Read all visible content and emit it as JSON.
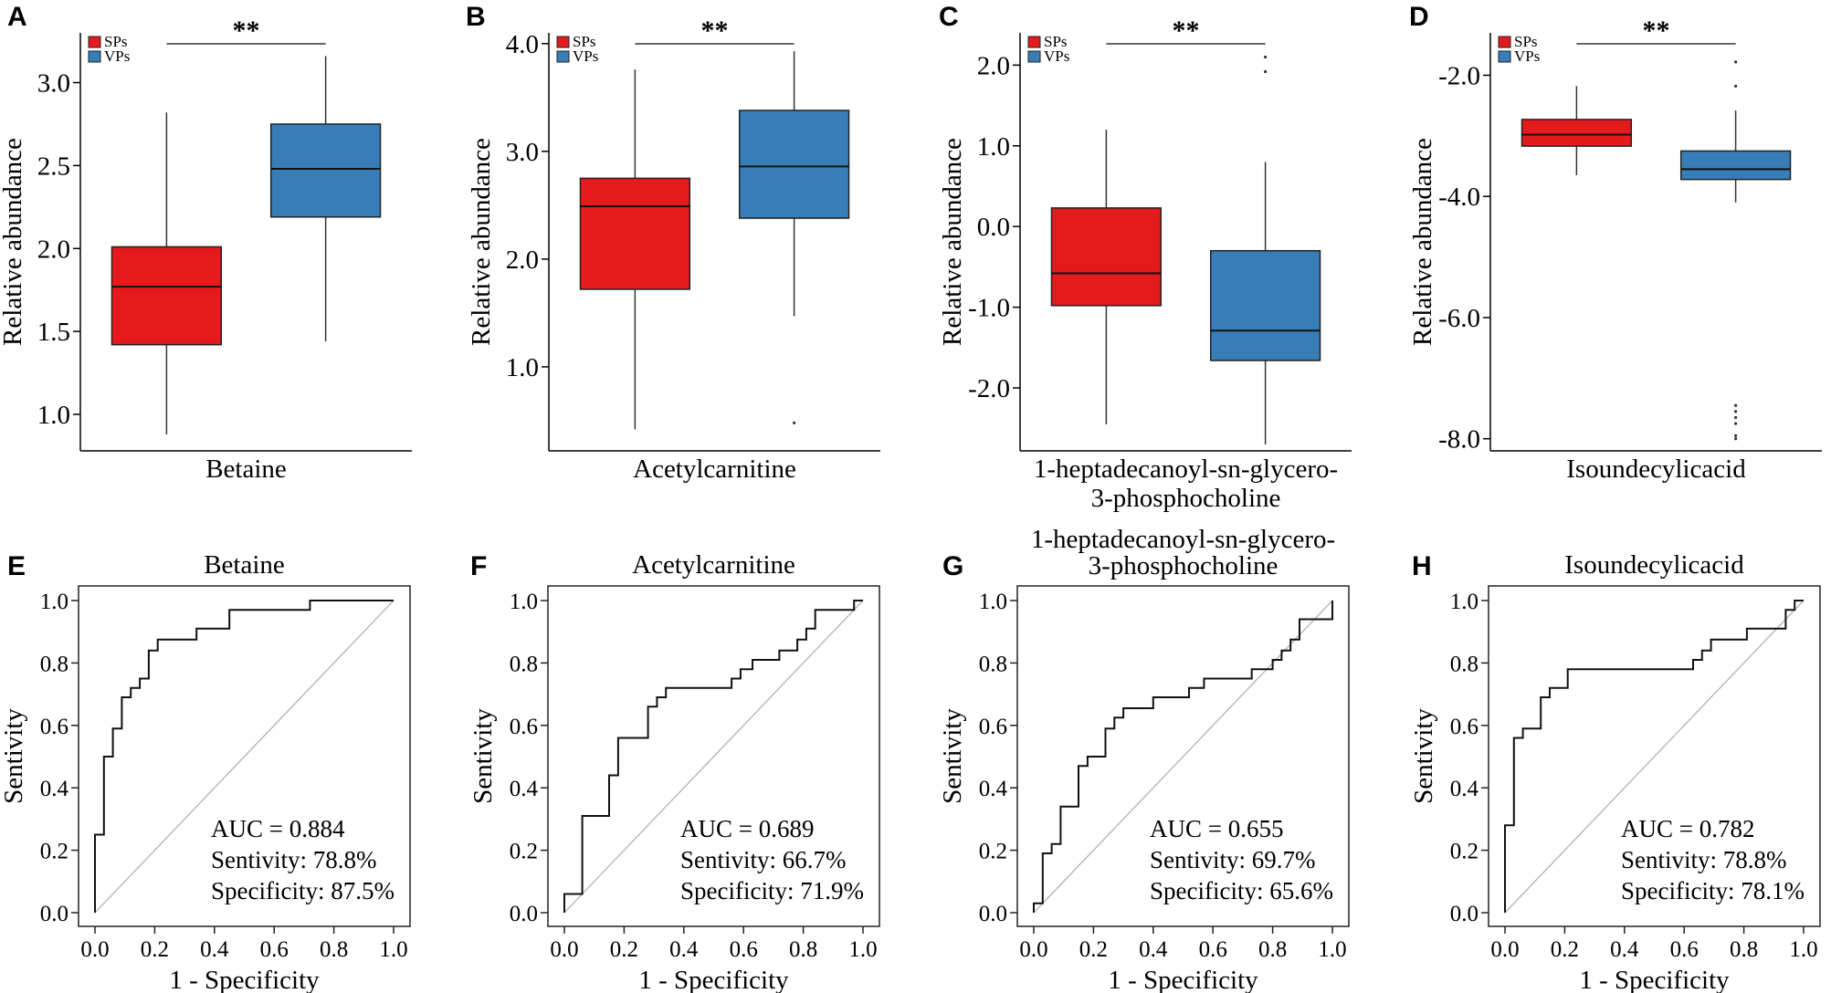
{
  "figure": {
    "box_panels": [
      {
        "letter": "A",
        "metabolite": "Betaine",
        "ylabel": "Relative abundance",
        "significance": "**",
        "ylim": [
          0.78,
          3.3
        ],
        "yticks": [
          1.0,
          1.5,
          2.0,
          2.5,
          3.0
        ],
        "ytick_labels": [
          "1.0",
          "1.5",
          "2.0",
          "2.5",
          "3.0"
        ],
        "legend": [
          "SPs",
          "VPs"
        ],
        "groups": [
          {
            "name": "SPs",
            "color": "#e41a1c",
            "min": 0.88,
            "q1": 1.42,
            "median": 1.77,
            "q3": 2.01,
            "max": 2.82,
            "outliers": []
          },
          {
            "name": "VPs",
            "color": "#377eb8",
            "min": 1.44,
            "q1": 2.19,
            "median": 2.48,
            "q3": 2.75,
            "max": 3.16,
            "outliers": []
          }
        ]
      },
      {
        "letter": "B",
        "metabolite": "Acetylcarnitine",
        "ylabel": "Relative abundance",
        "significance": "**",
        "ylim": [
          0.22,
          4.1
        ],
        "yticks": [
          1.0,
          2.0,
          3.0,
          4.0
        ],
        "ytick_labels": [
          "1.0",
          "2.0",
          "3.0",
          "4.0"
        ],
        "legend": [
          "SPs",
          "VPs"
        ],
        "groups": [
          {
            "name": "SPs",
            "color": "#e41a1c",
            "min": 0.42,
            "q1": 1.72,
            "median": 2.49,
            "q3": 2.75,
            "max": 3.76,
            "outliers": []
          },
          {
            "name": "VPs",
            "color": "#377eb8",
            "min": 1.47,
            "q1": 2.38,
            "median": 2.86,
            "q3": 3.38,
            "max": 3.93,
            "outliers": [
              0.48
            ]
          }
        ]
      },
      {
        "letter": "C",
        "metabolite": "1-heptadecanoyl-sn-glycero-3-phosphocholine",
        "metabolite_lines": [
          "1-heptadecanoyl-sn-glycero-",
          "3-phosphocholine"
        ],
        "ylabel": "Relative abundance",
        "significance": "**",
        "ylim": [
          -2.78,
          2.4
        ],
        "yticks": [
          -2.0,
          -1.0,
          0.0,
          1.0,
          2.0
        ],
        "ytick_labels": [
          "-2.0",
          "-1.0",
          "0.0",
          "1.0",
          "2.0"
        ],
        "legend": [
          "SPs",
          "VPs"
        ],
        "groups": [
          {
            "name": "SPs",
            "color": "#e41a1c",
            "min": -2.45,
            "q1": -0.98,
            "median": -0.58,
            "q3": 0.23,
            "max": 1.2,
            "outliers": []
          },
          {
            "name": "VPs",
            "color": "#377eb8",
            "min": -2.7,
            "q1": -1.66,
            "median": -1.29,
            "q3": -0.3,
            "max": 0.8,
            "outliers": [
              1.92,
              2.1
            ]
          }
        ]
      },
      {
        "letter": "D",
        "metabolite": "Isoundecylicacid",
        "ylabel": "Relative abundance",
        "significance": "**",
        "ylim": [
          -8.2,
          -1.3
        ],
        "yticks": [
          -8.0,
          -6.0,
          -4.0,
          -2.0
        ],
        "ytick_labels": [
          "-8.0",
          "-6.0",
          "-4.0",
          "-2.0"
        ],
        "legend": [
          "SPs",
          "VPs"
        ],
        "groups": [
          {
            "name": "SPs",
            "color": "#e41a1c",
            "min": -3.65,
            "q1": -3.17,
            "median": -2.98,
            "q3": -2.73,
            "max": -2.18,
            "outliers": []
          },
          {
            "name": "VPs",
            "color": "#377eb8",
            "min": -4.1,
            "q1": -3.72,
            "median": -3.55,
            "q3": -3.25,
            "max": -2.58,
            "outliers": [
              -1.78,
              -2.18,
              -7.45,
              -7.55,
              -7.65,
              -7.75,
              -7.95,
              -8.0
            ]
          }
        ]
      }
    ],
    "roc_panels": [
      {
        "letter": "E",
        "title": "Betaine",
        "title_lines": [
          "Betaine"
        ],
        "xlabel": "1 - Specificity",
        "ylabel": "Sentivity",
        "xticks": [
          "0.0",
          "0.2",
          "0.4",
          "0.6",
          "0.8",
          "1.0"
        ],
        "yticks": [
          "0.0",
          "0.2",
          "0.4",
          "0.6",
          "0.8",
          "1.0"
        ],
        "auc_text": "AUC = 0.884",
        "sens_text": "Sentivity: 78.8%",
        "spec_text": "Specificity: 87.5%",
        "curve": [
          [
            0,
            0
          ],
          [
            0,
            0.06
          ],
          [
            0,
            0.25
          ],
          [
            0.03,
            0.25
          ],
          [
            0.03,
            0.5
          ],
          [
            0.06,
            0.5
          ],
          [
            0.06,
            0.59
          ],
          [
            0.09,
            0.59
          ],
          [
            0.09,
            0.69
          ],
          [
            0.12,
            0.69
          ],
          [
            0.12,
            0.72
          ],
          [
            0.15,
            0.72
          ],
          [
            0.15,
            0.75
          ],
          [
            0.18,
            0.75
          ],
          [
            0.18,
            0.84
          ],
          [
            0.21,
            0.84
          ],
          [
            0.21,
            0.875
          ],
          [
            0.34,
            0.875
          ],
          [
            0.34,
            0.91
          ],
          [
            0.45,
            0.91
          ],
          [
            0.45,
            0.97
          ],
          [
            0.72,
            0.97
          ],
          [
            0.72,
            1.0
          ],
          [
            1.0,
            1.0
          ]
        ]
      },
      {
        "letter": "F",
        "title": "Acetylcarnitine",
        "title_lines": [
          "Acetylcarnitine"
        ],
        "xlabel": "1 - Specificity",
        "ylabel": "Sentivity",
        "xticks": [
          "0.0",
          "0.2",
          "0.4",
          "0.6",
          "0.8",
          "1.0"
        ],
        "yticks": [
          "0.0",
          "0.2",
          "0.4",
          "0.6",
          "0.8",
          "1.0"
        ],
        "auc_text": "AUC = 0.689",
        "sens_text": "Sentivity: 66.7%",
        "spec_text": "Specificity: 71.9%",
        "curve": [
          [
            0,
            0
          ],
          [
            0,
            0.06
          ],
          [
            0.06,
            0.06
          ],
          [
            0.06,
            0.31
          ],
          [
            0.15,
            0.31
          ],
          [
            0.15,
            0.44
          ],
          [
            0.18,
            0.44
          ],
          [
            0.18,
            0.56
          ],
          [
            0.28,
            0.56
          ],
          [
            0.28,
            0.66
          ],
          [
            0.31,
            0.66
          ],
          [
            0.31,
            0.69
          ],
          [
            0.34,
            0.69
          ],
          [
            0.34,
            0.72
          ],
          [
            0.56,
            0.72
          ],
          [
            0.56,
            0.75
          ],
          [
            0.59,
            0.75
          ],
          [
            0.59,
            0.78
          ],
          [
            0.63,
            0.78
          ],
          [
            0.63,
            0.81
          ],
          [
            0.72,
            0.81
          ],
          [
            0.72,
            0.84
          ],
          [
            0.78,
            0.84
          ],
          [
            0.78,
            0.875
          ],
          [
            0.81,
            0.875
          ],
          [
            0.81,
            0.91
          ],
          [
            0.84,
            0.91
          ],
          [
            0.84,
            0.97
          ],
          [
            0.97,
            0.97
          ],
          [
            0.97,
            1.0
          ],
          [
            1.0,
            1.0
          ]
        ]
      },
      {
        "letter": "G",
        "title": "1-heptadecanoyl-sn-glycero-3-phosphocholine",
        "title_lines": [
          "1-heptadecanoyl-sn-glycero-",
          "3-phosphocholine"
        ],
        "xlabel": "1 - Specificity",
        "ylabel": "Sentivity",
        "xticks": [
          "0.0",
          "0.2",
          "0.4",
          "0.6",
          "0.8",
          "1.0"
        ],
        "yticks": [
          "0.0",
          "0.2",
          "0.4",
          "0.6",
          "0.8",
          "1.0"
        ],
        "auc_text": "AUC = 0.655",
        "sens_text": "Sentivity: 69.7%",
        "spec_text": "Specificity: 65.6%",
        "curve": [
          [
            0,
            0
          ],
          [
            0,
            0.03
          ],
          [
            0.03,
            0.03
          ],
          [
            0.03,
            0.19
          ],
          [
            0.06,
            0.19
          ],
          [
            0.06,
            0.22
          ],
          [
            0.09,
            0.22
          ],
          [
            0.09,
            0.34
          ],
          [
            0.15,
            0.34
          ],
          [
            0.15,
            0.47
          ],
          [
            0.18,
            0.47
          ],
          [
            0.18,
            0.5
          ],
          [
            0.24,
            0.5
          ],
          [
            0.24,
            0.59
          ],
          [
            0.27,
            0.59
          ],
          [
            0.27,
            0.625
          ],
          [
            0.3,
            0.625
          ],
          [
            0.3,
            0.655
          ],
          [
            0.4,
            0.655
          ],
          [
            0.4,
            0.69
          ],
          [
            0.52,
            0.69
          ],
          [
            0.52,
            0.72
          ],
          [
            0.57,
            0.72
          ],
          [
            0.57,
            0.75
          ],
          [
            0.73,
            0.75
          ],
          [
            0.73,
            0.78
          ],
          [
            0.8,
            0.78
          ],
          [
            0.8,
            0.81
          ],
          [
            0.83,
            0.81
          ],
          [
            0.83,
            0.84
          ],
          [
            0.86,
            0.84
          ],
          [
            0.86,
            0.875
          ],
          [
            0.89,
            0.875
          ],
          [
            0.89,
            0.94
          ],
          [
            1.0,
            0.94
          ],
          [
            1.0,
            1.0
          ]
        ]
      },
      {
        "letter": "H",
        "title": "Isoundecylicacid",
        "title_lines": [
          "Isoundecylicacid"
        ],
        "xlabel": "1 - Specificity",
        "ylabel": "Sentivity",
        "xticks": [
          "0.0",
          "0.2",
          "0.4",
          "0.6",
          "0.8",
          "1.0"
        ],
        "yticks": [
          "0.0",
          "0.2",
          "0.4",
          "0.6",
          "0.8",
          "1.0"
        ],
        "auc_text": "AUC = 0.782",
        "sens_text": "Sentivity: 78.8%",
        "spec_text": "Specificity: 78.1%",
        "curve": [
          [
            0,
            0
          ],
          [
            0,
            0.28
          ],
          [
            0.03,
            0.28
          ],
          [
            0.03,
            0.56
          ],
          [
            0.06,
            0.56
          ],
          [
            0.06,
            0.59
          ],
          [
            0.12,
            0.59
          ],
          [
            0.12,
            0.69
          ],
          [
            0.15,
            0.69
          ],
          [
            0.15,
            0.72
          ],
          [
            0.21,
            0.72
          ],
          [
            0.21,
            0.78
          ],
          [
            0.63,
            0.78
          ],
          [
            0.63,
            0.81
          ],
          [
            0.66,
            0.81
          ],
          [
            0.66,
            0.84
          ],
          [
            0.69,
            0.84
          ],
          [
            0.69,
            0.875
          ],
          [
            0.81,
            0.875
          ],
          [
            0.81,
            0.91
          ],
          [
            0.94,
            0.91
          ],
          [
            0.94,
            0.97
          ],
          [
            0.97,
            0.97
          ],
          [
            0.97,
            1.0
          ],
          [
            1.0,
            1.0
          ]
        ]
      }
    ]
  },
  "chart_data": [
    {
      "type": "box",
      "panel": "A",
      "title": "Betaine",
      "xlabel": "Betaine",
      "ylabel": "Relative abundance",
      "categories": [
        "SPs",
        "VPs"
      ],
      "series": [
        {
          "name": "SPs",
          "min": 0.88,
          "q1": 1.42,
          "median": 1.77,
          "q3": 2.01,
          "max": 2.82
        },
        {
          "name": "VPs",
          "min": 1.44,
          "q1": 2.19,
          "median": 2.48,
          "q3": 2.75,
          "max": 3.16
        }
      ],
      "ylim": [
        0.78,
        3.3
      ],
      "annotation": "**"
    },
    {
      "type": "box",
      "panel": "B",
      "title": "Acetylcarnitine",
      "xlabel": "Acetylcarnitine",
      "ylabel": "Relative abundance",
      "categories": [
        "SPs",
        "VPs"
      ],
      "series": [
        {
          "name": "SPs",
          "min": 0.42,
          "q1": 1.72,
          "median": 2.49,
          "q3": 2.75,
          "max": 3.76
        },
        {
          "name": "VPs",
          "min": 1.47,
          "q1": 2.38,
          "median": 2.86,
          "q3": 3.38,
          "max": 3.93,
          "outliers": [
            0.48
          ]
        }
      ],
      "ylim": [
        0.22,
        4.1
      ],
      "annotation": "**"
    },
    {
      "type": "box",
      "panel": "C",
      "title": "1-heptadecanoyl-sn-glycero-3-phosphocholine",
      "xlabel": "1-heptadecanoyl-sn-glycero-3-phosphocholine",
      "ylabel": "Relative abundance",
      "categories": [
        "SPs",
        "VPs"
      ],
      "series": [
        {
          "name": "SPs",
          "min": -2.45,
          "q1": -0.98,
          "median": -0.58,
          "q3": 0.23,
          "max": 1.2
        },
        {
          "name": "VPs",
          "min": -2.7,
          "q1": -1.66,
          "median": -1.29,
          "q3": -0.3,
          "max": 0.8,
          "outliers": [
            1.92,
            2.1
          ]
        }
      ],
      "ylim": [
        -2.78,
        2.4
      ],
      "annotation": "**"
    },
    {
      "type": "box",
      "panel": "D",
      "title": "Isoundecylicacid",
      "xlabel": "Isoundecylicacid",
      "ylabel": "Relative abundance",
      "categories": [
        "SPs",
        "VPs"
      ],
      "series": [
        {
          "name": "SPs",
          "min": -3.65,
          "q1": -3.17,
          "median": -2.98,
          "q3": -2.73,
          "max": -2.18
        },
        {
          "name": "VPs",
          "min": -4.1,
          "q1": -3.72,
          "median": -3.55,
          "q3": -3.25,
          "max": -2.58,
          "outliers": [
            -1.78,
            -2.18,
            -7.45,
            -7.55,
            -7.65,
            -7.75,
            -7.95,
            -8.0
          ]
        }
      ],
      "ylim": [
        -8.2,
        -1.3
      ],
      "annotation": "**"
    },
    {
      "type": "line",
      "panel": "E",
      "title": "Betaine",
      "xlabel": "1 - Specificity",
      "ylabel": "Sentivity",
      "xlim": [
        0,
        1
      ],
      "ylim": [
        0,
        1
      ],
      "auc": 0.884,
      "sensitivity_pct": 78.8,
      "specificity_pct": 87.5
    },
    {
      "type": "line",
      "panel": "F",
      "title": "Acetylcarnitine",
      "xlabel": "1 - Specificity",
      "ylabel": "Sentivity",
      "xlim": [
        0,
        1
      ],
      "ylim": [
        0,
        1
      ],
      "auc": 0.689,
      "sensitivity_pct": 66.7,
      "specificity_pct": 71.9
    },
    {
      "type": "line",
      "panel": "G",
      "title": "1-heptadecanoyl-sn-glycero-3-phosphocholine",
      "xlabel": "1 - Specificity",
      "ylabel": "Sentivity",
      "xlim": [
        0,
        1
      ],
      "ylim": [
        0,
        1
      ],
      "auc": 0.655,
      "sensitivity_pct": 69.7,
      "specificity_pct": 65.6
    },
    {
      "type": "line",
      "panel": "H",
      "title": "Isoundecylicacid",
      "xlabel": "1 - Specificity",
      "ylabel": "Sentivity",
      "xlim": [
        0,
        1
      ],
      "ylim": [
        0,
        1
      ],
      "auc": 0.782,
      "sensitivity_pct": 78.8,
      "specificity_pct": 78.1
    }
  ]
}
